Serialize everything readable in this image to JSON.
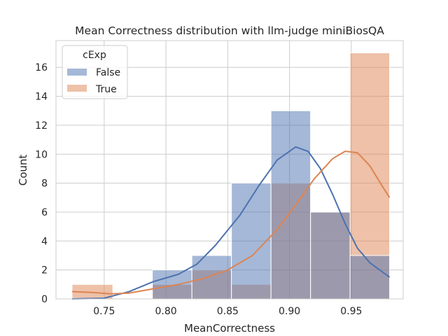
{
  "chart_data": {
    "type": "histogram",
    "title": "Mean Correctness distribution with llm-judge miniBiosQA",
    "xlabel": "MeanCorrectness",
    "ylabel": "Count",
    "xlim": [
      0.711,
      0.992
    ],
    "ylim": [
      0,
      17.85
    ],
    "xticks": [
      0.75,
      0.8,
      0.85,
      0.9,
      0.95
    ],
    "xtick_labels": [
      "0.75",
      "0.80",
      "0.85",
      "0.90",
      "0.95"
    ],
    "yticks": [
      0,
      2,
      4,
      6,
      8,
      10,
      12,
      14,
      16
    ],
    "grid": true,
    "legend": {
      "title": "cExp",
      "position": "top-left"
    },
    "bin_edges": [
      0.724,
      0.757,
      0.789,
      0.821,
      0.853,
      0.885,
      0.917,
      0.949,
      0.981
    ],
    "series": [
      {
        "name": "False",
        "color": "#4c72b0",
        "counts": [
          0,
          0,
          2,
          3,
          8,
          13,
          6,
          3
        ],
        "kde": [
          [
            0.724,
            0.0
          ],
          [
            0.75,
            0.05
          ],
          [
            0.77,
            0.5
          ],
          [
            0.79,
            1.2
          ],
          [
            0.81,
            1.7
          ],
          [
            0.825,
            2.4
          ],
          [
            0.84,
            3.7
          ],
          [
            0.86,
            5.8
          ],
          [
            0.875,
            7.8
          ],
          [
            0.89,
            9.6
          ],
          [
            0.905,
            10.5
          ],
          [
            0.915,
            10.2
          ],
          [
            0.925,
            9.0
          ],
          [
            0.935,
            7.2
          ],
          [
            0.945,
            5.2
          ],
          [
            0.955,
            3.5
          ],
          [
            0.965,
            2.5
          ],
          [
            0.981,
            1.5
          ]
        ]
      },
      {
        "name": "True",
        "color": "#dd8452",
        "counts": [
          1,
          0,
          1,
          2,
          1,
          8,
          6,
          17
        ],
        "kde": [
          [
            0.724,
            0.5
          ],
          [
            0.74,
            0.45
          ],
          [
            0.755,
            0.35
          ],
          [
            0.77,
            0.4
          ],
          [
            0.79,
            0.7
          ],
          [
            0.81,
            1.0
          ],
          [
            0.83,
            1.4
          ],
          [
            0.85,
            2.0
          ],
          [
            0.87,
            3.0
          ],
          [
            0.89,
            4.8
          ],
          [
            0.905,
            6.5
          ],
          [
            0.92,
            8.3
          ],
          [
            0.935,
            9.7
          ],
          [
            0.945,
            10.2
          ],
          [
            0.955,
            10.1
          ],
          [
            0.965,
            9.2
          ],
          [
            0.975,
            7.8
          ],
          [
            0.981,
            7.0
          ]
        ]
      }
    ]
  }
}
